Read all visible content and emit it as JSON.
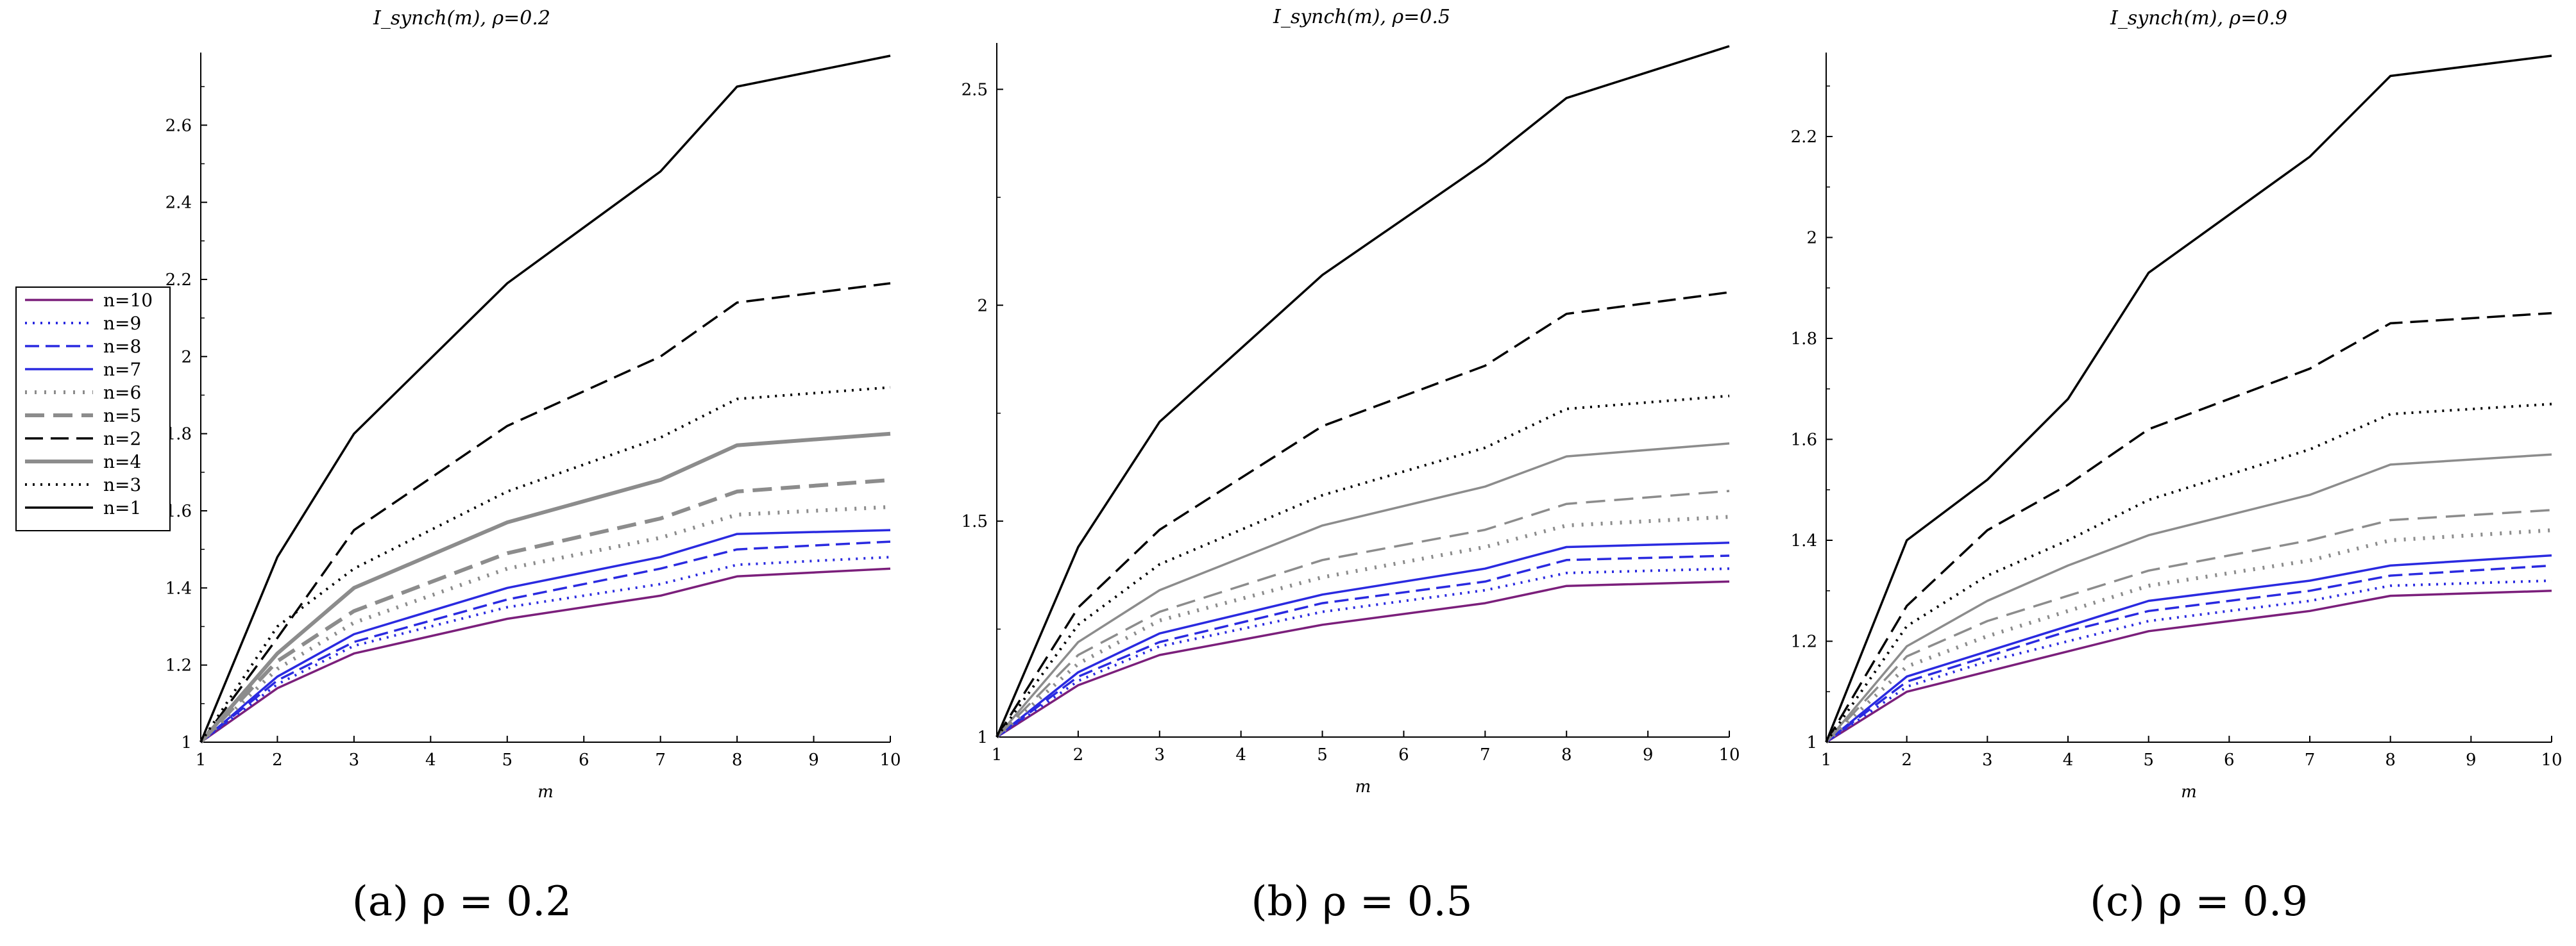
{
  "chart_data": [
    {
      "type": "line",
      "title": "I_synch(m), ρ=0.2",
      "xlabel": "m",
      "ylabel": "",
      "caption": "(a) ρ = 0.2",
      "x": [
        1,
        2,
        3,
        5,
        7,
        8,
        10
      ],
      "xlim": [
        1,
        10
      ],
      "ylim": [
        1,
        2.78
      ],
      "yticks": [
        1,
        1.2,
        1.4,
        1.6,
        1.8,
        2,
        2.2,
        2.4,
        2.6
      ],
      "legend_position": "left",
      "series": [
        {
          "name": "n=10",
          "values": [
            1,
            1.14,
            1.23,
            1.32,
            1.38,
            1.43,
            1.45
          ]
        },
        {
          "name": "n=9",
          "values": [
            1,
            1.15,
            1.25,
            1.35,
            1.41,
            1.46,
            1.48
          ]
        },
        {
          "name": "n=8",
          "values": [
            1,
            1.16,
            1.26,
            1.37,
            1.45,
            1.5,
            1.52
          ]
        },
        {
          "name": "n=7",
          "values": [
            1,
            1.17,
            1.28,
            1.4,
            1.48,
            1.54,
            1.55
          ]
        },
        {
          "name": "n=6",
          "values": [
            1,
            1.19,
            1.31,
            1.45,
            1.53,
            1.59,
            1.61
          ]
        },
        {
          "name": "n=5",
          "values": [
            1,
            1.21,
            1.34,
            1.49,
            1.58,
            1.65,
            1.68
          ]
        },
        {
          "name": "n=2",
          "values": [
            1,
            1.27,
            1.55,
            1.82,
            2.0,
            2.14,
            2.19
          ]
        },
        {
          "name": "n=4",
          "values": [
            1,
            1.23,
            1.4,
            1.57,
            1.68,
            1.77,
            1.8
          ]
        },
        {
          "name": "n=3",
          "values": [
            1,
            1.3,
            1.45,
            1.65,
            1.79,
            1.89,
            1.92
          ]
        },
        {
          "name": "n=1",
          "values": [
            1,
            1.48,
            1.8,
            2.19,
            2.48,
            2.7,
            2.78
          ]
        }
      ]
    },
    {
      "type": "line",
      "title": "I_synch(m), ρ=0.5",
      "xlabel": "m",
      "ylabel": "",
      "caption": "(b) ρ = 0.5",
      "x": [
        1,
        2,
        3,
        5,
        7,
        8,
        10
      ],
      "xlim": [
        1,
        10
      ],
      "ylim": [
        1,
        2.6
      ],
      "yticks": [
        1,
        1.5,
        2,
        2.5
      ],
      "series": [
        {
          "name": "n=10",
          "values": [
            1,
            1.12,
            1.19,
            1.26,
            1.31,
            1.35,
            1.36
          ]
        },
        {
          "name": "n=9",
          "values": [
            1,
            1.13,
            1.21,
            1.29,
            1.34,
            1.38,
            1.39
          ]
        },
        {
          "name": "n=8",
          "values": [
            1,
            1.14,
            1.22,
            1.31,
            1.36,
            1.41,
            1.42
          ]
        },
        {
          "name": "n=7",
          "values": [
            1,
            1.15,
            1.24,
            1.33,
            1.39,
            1.44,
            1.45
          ]
        },
        {
          "name": "n=6",
          "values": [
            1,
            1.17,
            1.27,
            1.37,
            1.44,
            1.49,
            1.51
          ]
        },
        {
          "name": "n=5",
          "values": [
            1,
            1.19,
            1.29,
            1.41,
            1.48,
            1.54,
            1.57
          ]
        },
        {
          "name": "n=2",
          "values": [
            1,
            1.3,
            1.48,
            1.72,
            1.86,
            1.98,
            2.03
          ]
        },
        {
          "name": "n=4",
          "values": [
            1,
            1.22,
            1.34,
            1.49,
            1.58,
            1.65,
            1.68
          ]
        },
        {
          "name": "n=3",
          "values": [
            1,
            1.26,
            1.4,
            1.56,
            1.67,
            1.76,
            1.79
          ]
        },
        {
          "name": "n=1",
          "values": [
            1,
            1.44,
            1.73,
            2.07,
            2.33,
            2.48,
            2.6
          ]
        }
      ]
    },
    {
      "type": "line",
      "title": "I_synch(m), ρ=0.9",
      "xlabel": "m",
      "ylabel": "",
      "caption": "(c) ρ = 0.9",
      "x": [
        1,
        2,
        3,
        4,
        5,
        7,
        8,
        10
      ],
      "xlim": [
        1,
        10
      ],
      "ylim": [
        1,
        2.36
      ],
      "yticks": [
        1,
        1.2,
        1.4,
        1.6,
        1.8,
        2,
        2.2
      ],
      "series": [
        {
          "name": "n=10",
          "values": [
            1,
            1.1,
            1.14,
            1.18,
            1.22,
            1.26,
            1.29,
            1.3
          ]
        },
        {
          "name": "n=9",
          "values": [
            1,
            1.11,
            1.16,
            1.2,
            1.24,
            1.28,
            1.31,
            1.32
          ]
        },
        {
          "name": "n=8",
          "values": [
            1,
            1.12,
            1.17,
            1.22,
            1.26,
            1.3,
            1.33,
            1.35
          ]
        },
        {
          "name": "n=7",
          "values": [
            1,
            1.13,
            1.18,
            1.23,
            1.28,
            1.32,
            1.35,
            1.37
          ]
        },
        {
          "name": "n=6",
          "values": [
            1,
            1.15,
            1.21,
            1.26,
            1.31,
            1.36,
            1.4,
            1.42
          ]
        },
        {
          "name": "n=5",
          "values": [
            1,
            1.17,
            1.24,
            1.29,
            1.34,
            1.4,
            1.44,
            1.46
          ]
        },
        {
          "name": "n=2",
          "values": [
            1,
            1.27,
            1.42,
            1.51,
            1.62,
            1.74,
            1.83,
            1.85
          ]
        },
        {
          "name": "n=4",
          "values": [
            1,
            1.19,
            1.28,
            1.35,
            1.41,
            1.49,
            1.55,
            1.57
          ]
        },
        {
          "name": "n=3",
          "values": [
            1,
            1.23,
            1.33,
            1.4,
            1.48,
            1.58,
            1.65,
            1.67
          ]
        },
        {
          "name": "n=1",
          "values": [
            1,
            1.4,
            1.52,
            1.68,
            1.93,
            2.16,
            2.32,
            2.36
          ]
        }
      ]
    }
  ],
  "legend": [
    {
      "name": "n=10",
      "color": "#7b1f7b"
    },
    {
      "name": "n=9",
      "color": "#2a2ae0"
    },
    {
      "name": "n=8",
      "color": "#2a2ae0"
    },
    {
      "name": "n=7",
      "color": "#2a2ae0"
    },
    {
      "name": "n=6",
      "color": "#8c8c8c"
    },
    {
      "name": "n=5",
      "color": "#8c8c8c"
    },
    {
      "name": "n=2",
      "color": "#000000"
    },
    {
      "name": "n=4",
      "color": "#8c8c8c"
    },
    {
      "name": "n=3",
      "color": "#000000"
    },
    {
      "name": "n=1",
      "color": "#000000"
    }
  ]
}
